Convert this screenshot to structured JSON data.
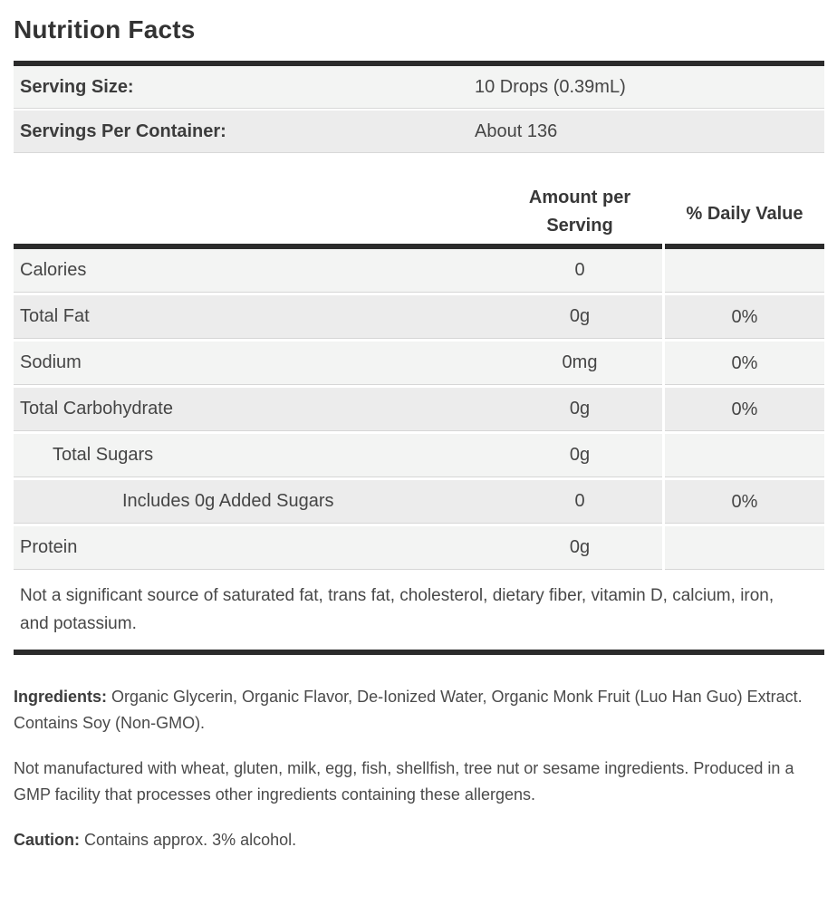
{
  "title": "Nutrition Facts",
  "serving_info": {
    "rows": [
      {
        "label": "Serving Size:",
        "value": "10 Drops (0.39mL)"
      },
      {
        "label": "Servings Per Container:",
        "value": "About 136"
      }
    ]
  },
  "nutrition_table": {
    "amount_header_line1": "Amount per",
    "amount_header_line2": "Serving",
    "dv_header": "% Daily Value",
    "rows": [
      {
        "label": "Calories",
        "amount": "0",
        "dv": ""
      },
      {
        "label": "Total Fat",
        "amount": "0g",
        "dv": "0%"
      },
      {
        "label": "Sodium",
        "amount": "0mg",
        "dv": "0%"
      },
      {
        "label": "Total Carbohydrate",
        "amount": "0g",
        "dv": "0%"
      },
      {
        "label": "Total Sugars",
        "amount": "0g",
        "dv": ""
      },
      {
        "label": "Includes 0g Added Sugars",
        "amount": "0",
        "dv": "0%"
      },
      {
        "label": "Protein",
        "amount": "0g",
        "dv": ""
      }
    ],
    "footnote": "Not a significant source of saturated fat, trans fat, cholesterol, dietary fiber, vitamin D, calcium, iron, and potassium."
  },
  "paragraphs": {
    "ingredients_label": "Ingredients:",
    "ingredients_text": " Organic Glycerin, Organic Flavor, De-Ionized Water, Organic Monk Fruit (Luo Han Guo) Extract. Contains Soy (Non-GMO).",
    "allergen_text": "Not manufactured with wheat, gluten, milk, egg, fish, shellfish, tree nut or sesame ingredients. Produced in a GMP facility that processes other ingredients containing these allergens.",
    "caution_label": "Caution:",
    "caution_text": " Contains approx. 3% alcohol."
  },
  "colors": {
    "bar": "#2b2b2b",
    "row_light": "#f3f4f3",
    "row_dark": "#ececec",
    "row_border": "#d6d6d6",
    "text": "#454545",
    "title_text": "#333333"
  }
}
